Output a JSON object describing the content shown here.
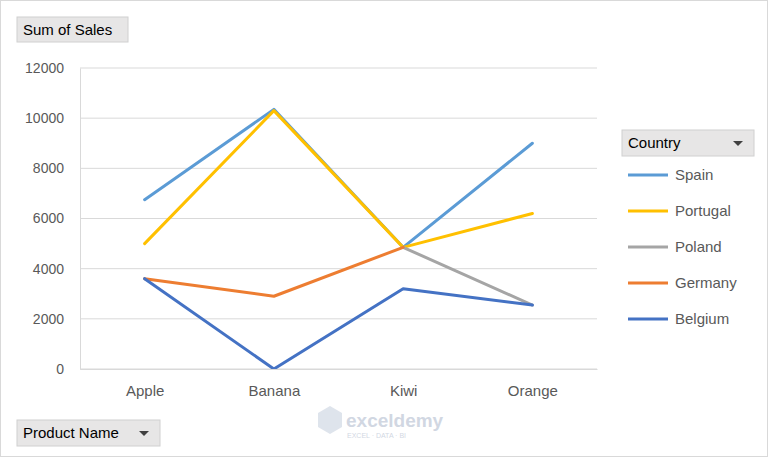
{
  "chart_data": {
    "type": "line",
    "ylabel": "Sum of Sales",
    "xlabel": "Product Name",
    "legend_title": "Country",
    "annotations": [
      "exceldemy",
      "EXCEL · DATA · BI"
    ],
    "categories": [
      "Apple",
      "Banana",
      "Kiwi",
      "Orange"
    ],
    "series": [
      {
        "name": "Spain",
        "color": "#5b9bd5",
        "values": [
          6750,
          10350,
          4850,
          9000
        ]
      },
      {
        "name": "Portugal",
        "color": "#ffc000",
        "values": [
          5000,
          10300,
          4850,
          6200
        ]
      },
      {
        "name": "Poland",
        "color": "#a5a5a5",
        "values": [
          null,
          null,
          4850,
          2550
        ]
      },
      {
        "name": "Germany",
        "color": "#ed7d31",
        "values": [
          3600,
          2900,
          4850,
          null
        ]
      },
      {
        "name": "Belgium",
        "color": "#4472c4",
        "values": [
          3600,
          0,
          3200,
          2550
        ]
      }
    ],
    "ylim": [
      0,
      12000
    ],
    "yticks": [
      0,
      2000,
      4000,
      6000,
      8000,
      10000,
      12000
    ],
    "grid": true,
    "legend": "right"
  }
}
